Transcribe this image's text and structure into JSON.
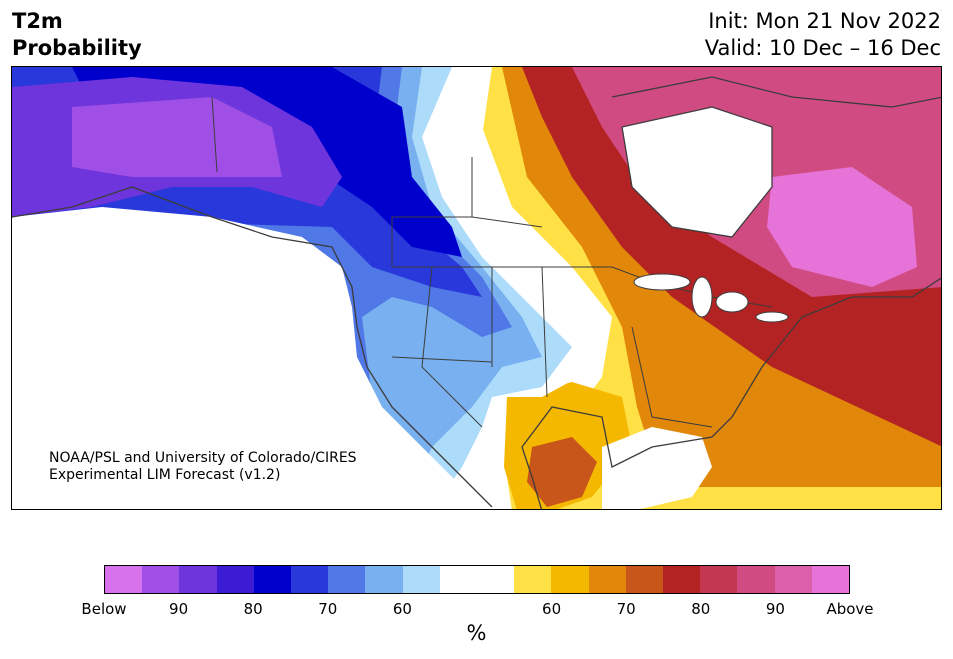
{
  "title": {
    "left_line1": "T2m",
    "left_line2": "Probability",
    "right_line1": "Init: Mon 21 Nov 2022",
    "right_line2": "Valid: 10 Dec – 16 Dec"
  },
  "credit": {
    "line1": "NOAA/PSL and University of Colorado/CIRES",
    "line2": "Experimental LIM Forecast (v1.2)"
  },
  "colorbar": {
    "colors": [
      "#d772ec",
      "#a04fe6",
      "#6d35db",
      "#3c1bd5",
      "#0000cd",
      "#2838db",
      "#5078e6",
      "#78b0f0",
      "#acdcfa",
      "#ffffff",
      "#ffffff",
      "#ffe146",
      "#f5b800",
      "#e1870a",
      "#c85519",
      "#b42323",
      "#c33750",
      "#d04b82",
      "#dc5faa",
      "#e673d7"
    ],
    "tick_labels": [
      "Below",
      "90",
      "80",
      "70",
      "60",
      "60",
      "70",
      "80",
      "90",
      "Above"
    ],
    "unit": "%"
  },
  "map": {
    "land": "#ffffff",
    "ocean": "#ffffff",
    "borders": "#3c3c3c"
  }
}
